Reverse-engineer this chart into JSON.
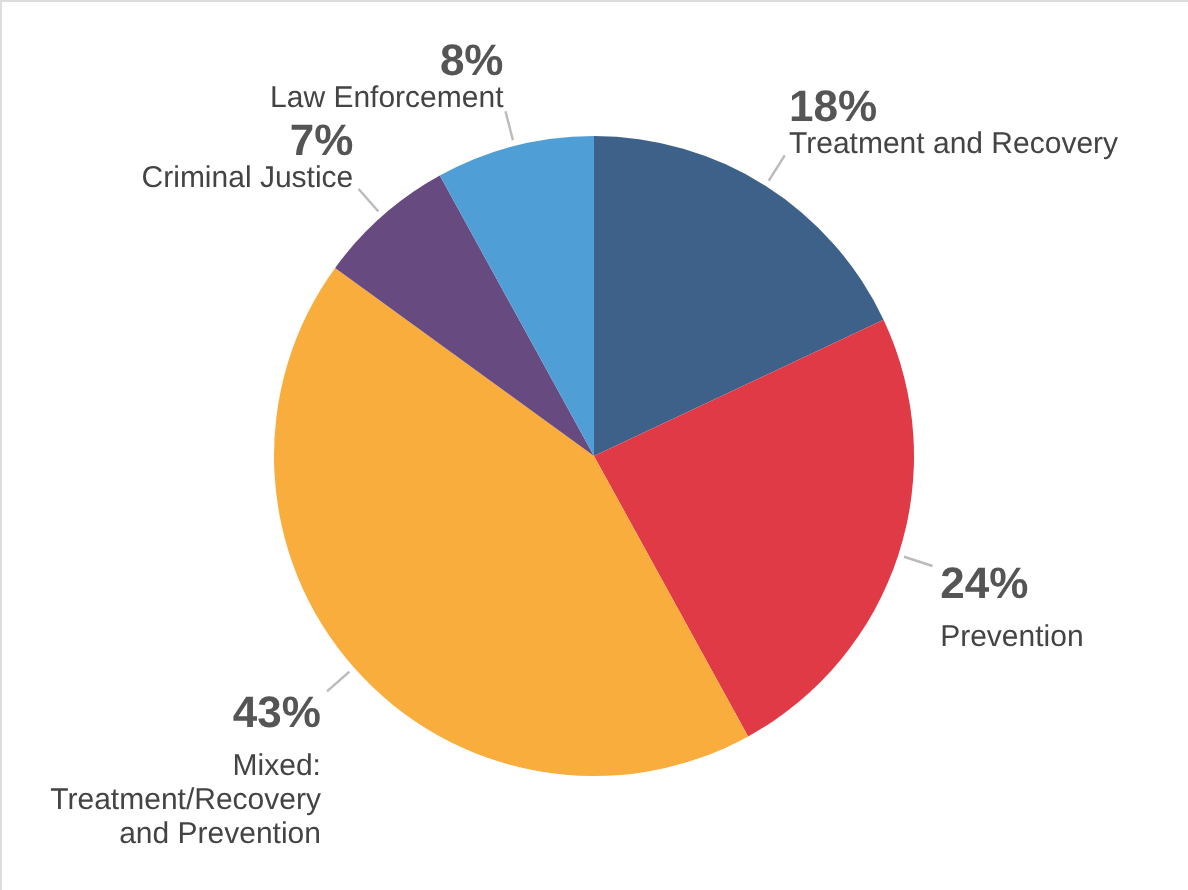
{
  "chart_data": {
    "type": "pie",
    "categories": [
      "Treatment and Recovery",
      "Prevention",
      "Mixed:\nTreatment/Recovery\nand Prevention",
      "Criminal Justice",
      "Law Enforcement"
    ],
    "values": [
      18,
      24,
      43,
      7,
      8
    ],
    "value_labels": [
      "18%",
      "24%",
      "43%",
      "7%",
      "8%"
    ],
    "colors": [
      "#3d6189",
      "#e03a47",
      "#f9ad3c",
      "#664a80",
      "#4f9fd6"
    ]
  }
}
